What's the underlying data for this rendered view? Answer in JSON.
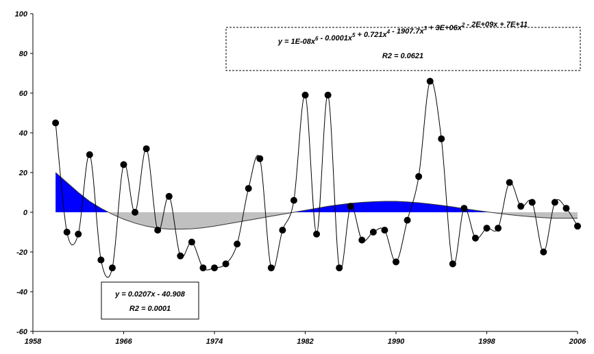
{
  "chart_data": {
    "type": "line",
    "x": [
      1960,
      1961,
      1962,
      1963,
      1964,
      1965,
      1966,
      1967,
      1968,
      1969,
      1970,
      1971,
      1972,
      1973,
      1974,
      1975,
      1976,
      1977,
      1978,
      1979,
      1980,
      1981,
      1982,
      1983,
      1984,
      1985,
      1986,
      1987,
      1988,
      1989,
      1990,
      1991,
      1992,
      1993,
      1994,
      1995,
      1996,
      1997,
      1998,
      1999,
      2000,
      2001,
      2002,
      2003,
      2004,
      2005,
      2006
    ],
    "series": [
      {
        "color": "#000000",
        "values": [
          45,
          -10,
          -11,
          29,
          -24,
          -28,
          24,
          0,
          32,
          -9,
          8,
          -22,
          -15,
          -28,
          -28,
          -26,
          -16,
          12,
          27,
          -28,
          -9,
          6,
          59,
          -11,
          59,
          -28,
          3,
          -14,
          -10,
          -9,
          -25,
          -4,
          18,
          66,
          37,
          -26,
          2,
          -13,
          -8,
          -8,
          15,
          3,
          5,
          -20,
          5,
          2,
          -7
        ]
      },
      {
        "positive_color": "#0000ff",
        "negative_color": "#c0c0c0",
        "values": [
          20,
          15,
          10,
          5.5,
          2,
          -1,
          -3.5,
          -5.5,
          -7,
          -8,
          -8.5,
          -8.5,
          -8.3,
          -7.8,
          -7,
          -6,
          -5,
          -4,
          -3,
          -2,
          -1,
          0,
          1,
          2,
          3,
          3.8,
          4.5,
          5,
          5.3,
          5.5,
          5.5,
          5.2,
          4.8,
          4.2,
          3.5,
          2.7,
          1.8,
          1,
          0.2,
          -0.5,
          -1.2,
          -1.8,
          -2.3,
          -2.7,
          -3,
          -3,
          -3
        ]
      }
    ],
    "xlim": [
      1958,
      2006
    ],
    "xticks": [
      1958,
      1966,
      1974,
      1982,
      1990,
      1998,
      2006
    ],
    "ylim": [
      -60,
      100
    ],
    "yticks": [
      -60,
      -40,
      -20,
      0,
      20,
      40,
      60,
      80,
      100
    ],
    "annotations": [
      {
        "terms": [
          {
            "base": "y = 1E-08x",
            "sup": "6"
          },
          {
            "base": " - 0.0001x",
            "sup": "5"
          },
          {
            "base": " + 0.721x",
            "sup": "4"
          },
          {
            "base": " - 1907.7x",
            "sup": "3"
          },
          {
            "base": " + 3E+06x",
            "sup": "2"
          },
          {
            "base": " - 2E+09x + 7E+11"
          }
        ],
        "r2": "R2 = 0.0621"
      },
      {
        "terms": [
          {
            "base": "y = 0.0207x - 40.908"
          }
        ],
        "r2": "R2 = 0.0001"
      }
    ]
  }
}
